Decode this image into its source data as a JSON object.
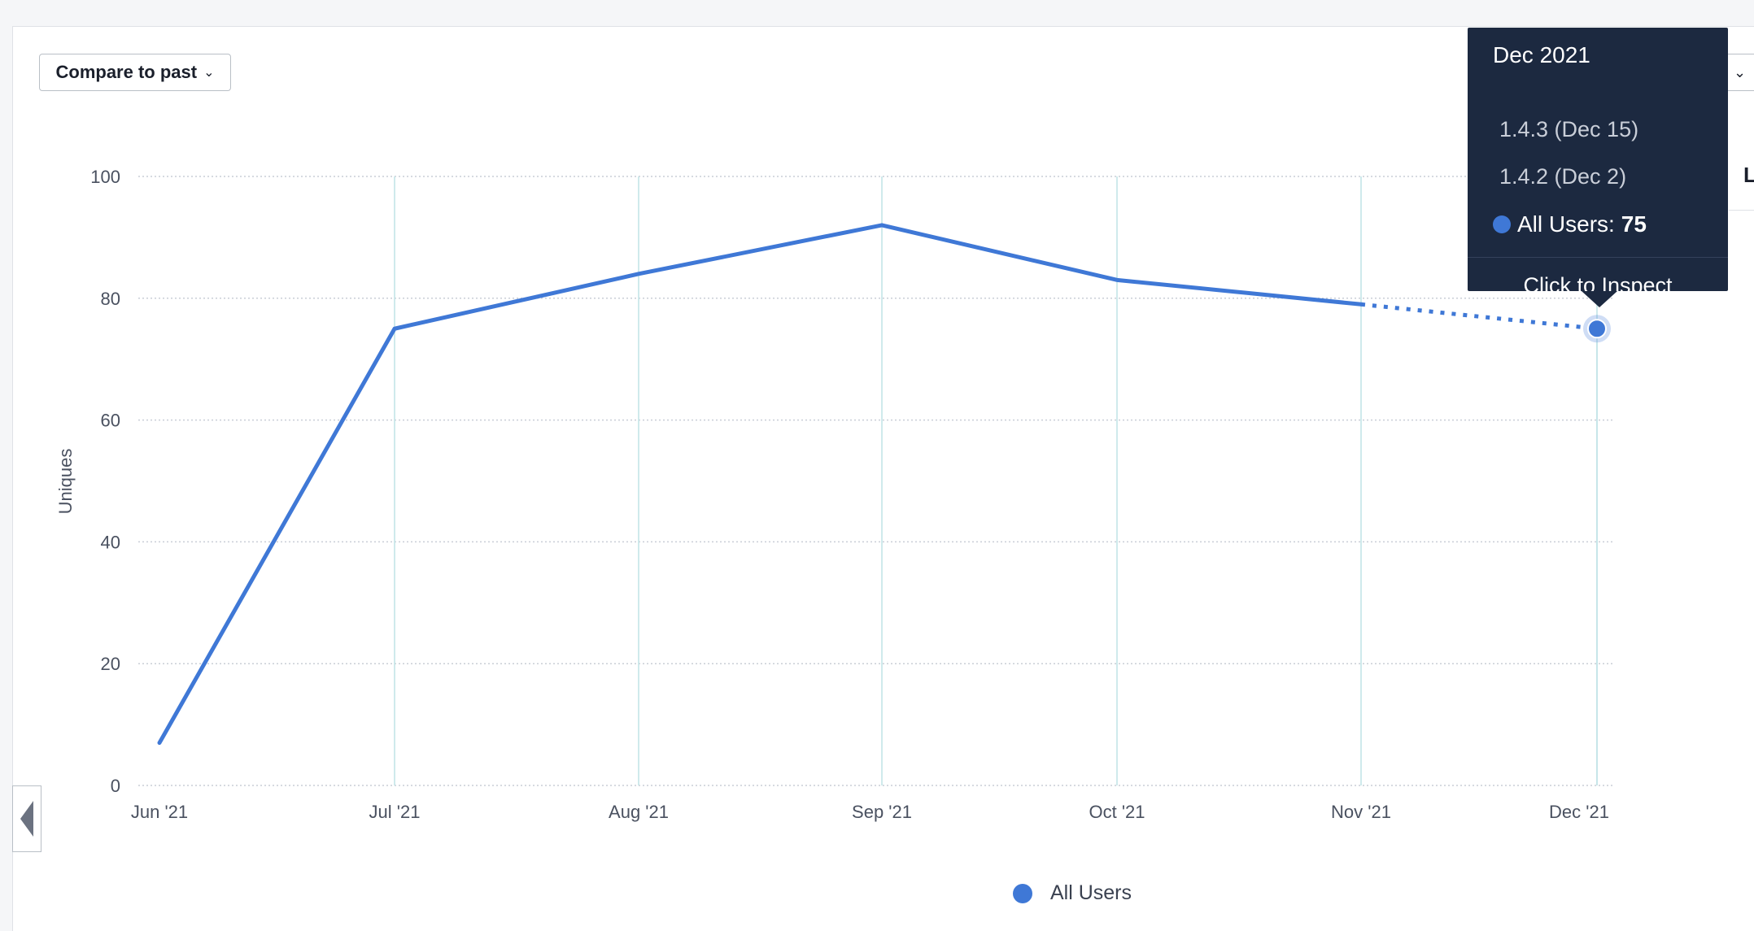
{
  "toolbar": {
    "compare_label": "Compare to past",
    "right_partial_letter": "L"
  },
  "colors": {
    "series": "#3f78d6",
    "grid": "#c9ced6",
    "vgrid": "#bfe3e6",
    "tooltip_bg": "#1c2940"
  },
  "icons": {
    "compare_chevron": "chevron-down-icon",
    "right_chevron": "chevron-down-icon",
    "scroll": "triangle-left-icon"
  },
  "chart_data": {
    "type": "line",
    "ylabel": "Uniques",
    "xlabel": "",
    "ylim": [
      0,
      100
    ],
    "y_ticks": [
      "0",
      "20",
      "40",
      "60",
      "80",
      "100"
    ],
    "categories": [
      "Jun '21",
      "Jul '21",
      "Aug '21",
      "Sep '21",
      "Oct '21",
      "Nov '21",
      "Dec '21"
    ],
    "series": [
      {
        "name": "All Users",
        "values": [
          7,
          75,
          84,
          92,
          83,
          79,
          75
        ],
        "incomplete_from_index": 5
      }
    ],
    "grid": true,
    "legend": "bottom-center"
  },
  "tooltip": {
    "title": "Dec 2021",
    "releases": [
      "1.4.3 (Dec 15)",
      "1.4.2 (Dec 2)"
    ],
    "series_label": "All Users:",
    "series_value": "75",
    "action": "Click to Inspect"
  },
  "legend": {
    "label": "All Users"
  }
}
